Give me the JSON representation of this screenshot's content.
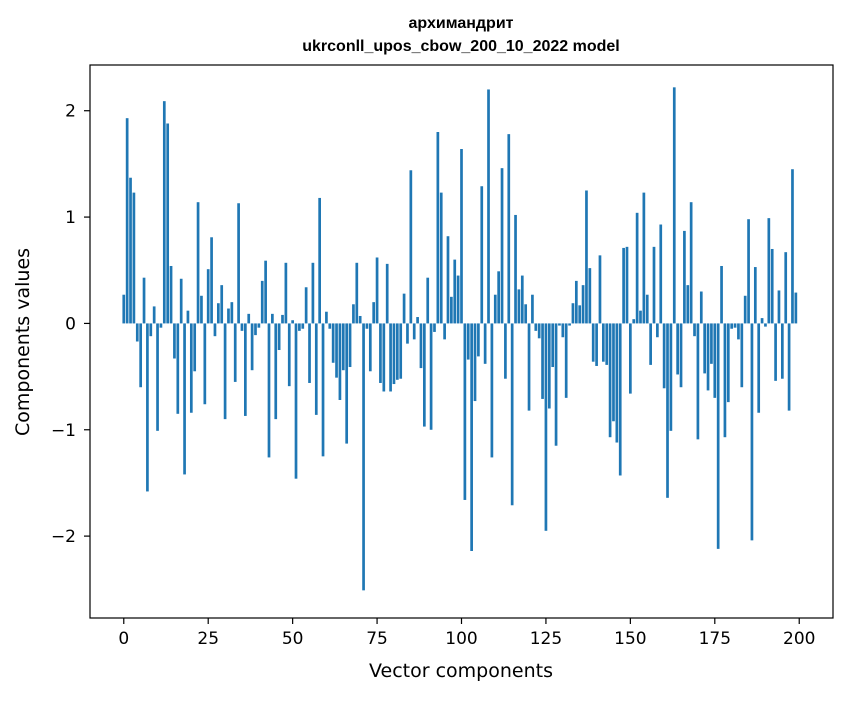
{
  "chart_data": {
    "type": "bar",
    "title_line1": "архимандрит",
    "title_line2": "ukrconll_upos_cbow_200_10_2022 model",
    "xlabel": "Vector components",
    "ylabel": "Components values",
    "xlim": [
      -10,
      210
    ],
    "ylim": [
      -2.77,
      2.43
    ],
    "grid": false,
    "bar_color": "#1f77b4",
    "x_ticks": [
      0,
      25,
      50,
      75,
      100,
      125,
      150,
      175,
      200
    ],
    "x_tick_labels": [
      "0",
      "25",
      "50",
      "75",
      "100",
      "125",
      "150",
      "175",
      "200"
    ],
    "y_ticks": [
      -2,
      -1,
      0,
      1,
      2
    ],
    "y_tick_labels": [
      "−2",
      "−1",
      "0",
      "1",
      "2"
    ],
    "values": [
      0.27,
      1.93,
      1.37,
      1.23,
      -0.17,
      -0.6,
      0.43,
      -1.58,
      -0.12,
      0.16,
      -1.01,
      -0.04,
      2.09,
      1.88,
      0.54,
      -0.33,
      -0.85,
      0.42,
      -1.42,
      0.12,
      -0.84,
      -0.45,
      1.14,
      0.26,
      -0.76,
      0.51,
      0.81,
      -0.12,
      0.19,
      0.36,
      -0.9,
      0.14,
      0.2,
      -0.55,
      1.13,
      -0.07,
      -0.87,
      0.09,
      -0.44,
      -0.11,
      -0.04,
      0.4,
      0.59,
      -1.26,
      0.09,
      -0.9,
      -0.25,
      0.08,
      0.57,
      -0.59,
      0.03,
      -1.46,
      -0.07,
      -0.05,
      0.34,
      -0.56,
      0.57,
      -0.86,
      1.18,
      -1.25,
      0.11,
      -0.05,
      -0.37,
      -0.51,
      -0.72,
      -0.44,
      -1.13,
      -0.41,
      0.18,
      0.57,
      0.07,
      -2.51,
      -0.05,
      -0.45,
      0.2,
      0.62,
      -0.56,
      -0.64,
      0.56,
      -0.64,
      -0.57,
      -0.53,
      -0.52,
      0.28,
      -0.19,
      1.44,
      -0.15,
      0.06,
      -0.42,
      -0.97,
      0.43,
      -1.0,
      -0.08,
      1.8,
      1.23,
      -0.15,
      0.82,
      0.25,
      0.6,
      0.45,
      1.64,
      -1.66,
      -0.34,
      -2.14,
      -0.73,
      -0.31,
      1.29,
      -0.38,
      2.2,
      -1.26,
      0.27,
      0.49,
      1.46,
      -0.52,
      1.78,
      -1.71,
      1.02,
      0.32,
      0.45,
      0.18,
      -0.82,
      0.27,
      -0.07,
      -0.14,
      -0.71,
      -1.95,
      -0.8,
      -0.41,
      -1.15,
      -0.02,
      -0.13,
      -0.7,
      -0.02,
      0.19,
      0.4,
      0.17,
      0.36,
      1.25,
      0.52,
      -0.36,
      -0.4,
      0.64,
      -0.36,
      -0.39,
      -1.07,
      -0.92,
      -1.12,
      -1.43,
      0.71,
      0.72,
      -0.66,
      0.04,
      1.04,
      0.12,
      1.23,
      0.27,
      -0.39,
      0.72,
      -0.13,
      0.93,
      -0.61,
      -1.64,
      -1.01,
      2.22,
      -0.48,
      -0.6,
      0.87,
      0.36,
      1.14,
      -0.12,
      -1.09,
      0.3,
      -0.47,
      -0.63,
      -0.38,
      -0.7,
      -2.12,
      0.54,
      -1.07,
      -0.74,
      -0.05,
      -0.04,
      -0.15,
      -0.6,
      0.26,
      0.98,
      -2.04,
      0.53,
      -0.84,
      0.05,
      -0.03,
      0.99,
      0.7,
      -0.54,
      0.31,
      -0.52,
      0.67,
      -0.82,
      1.45,
      0.29
    ]
  }
}
